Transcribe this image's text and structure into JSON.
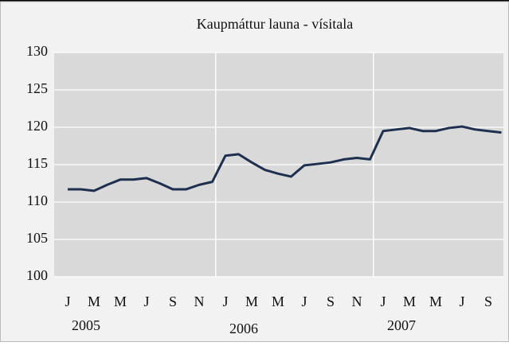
{
  "chart_data": {
    "type": "line",
    "title": "Kaupmáttur launa - vísitala",
    "categories": [
      "J",
      null,
      "M",
      null,
      "M",
      null,
      "J",
      null,
      "S",
      null,
      "N",
      null,
      "J",
      null,
      "M",
      null,
      "M",
      null,
      "J",
      null,
      "S",
      null,
      "N",
      null,
      "J",
      null,
      "M",
      null,
      "M",
      null,
      "J",
      null,
      "S",
      null
    ],
    "years": [
      "2005",
      "2006",
      "2007"
    ],
    "series": [
      {
        "color": "#1f2f4f",
        "values": [
          111.7,
          111.7,
          111.5,
          112.3,
          113.0,
          113.0,
          113.2,
          112.5,
          111.7,
          111.7,
          112.3,
          112.7,
          116.2,
          116.4,
          115.3,
          114.3,
          113.8,
          113.4,
          114.9,
          115.1,
          115.3,
          115.7,
          115.9,
          115.7,
          119.5,
          119.7,
          119.9,
          119.5,
          119.5,
          119.9,
          120.1,
          119.7,
          119.5,
          119.3
        ]
      }
    ],
    "ylim": [
      100,
      130
    ],
    "yticks": [
      100,
      105,
      110,
      115,
      120,
      125,
      130
    ],
    "grid": true
  }
}
